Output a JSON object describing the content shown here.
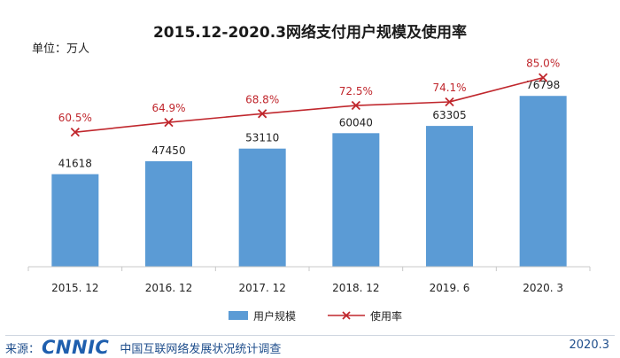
{
  "chart_data": {
    "type": "bar",
    "title": "2015.12-2020.3网络支付用户规模及使用率",
    "unit_label": "单位：万人",
    "categories": [
      "2015. 12",
      "2016. 12",
      "2017. 12",
      "2018. 12",
      "2019. 6",
      "2020. 3"
    ],
    "series": [
      {
        "name": "用户规模",
        "type": "bar",
        "values": [
          41618,
          47450,
          53110,
          60040,
          63305,
          76798
        ],
        "color": "#5b9bd5"
      },
      {
        "name": "使用率",
        "type": "line",
        "values": [
          60.5,
          64.9,
          68.8,
          72.5,
          74.1,
          85.0
        ],
        "labels": [
          "60.5%",
          "64.9%",
          "68.8%",
          "72.5%",
          "74.1%",
          "85.0%"
        ],
        "color": "#c0272d"
      }
    ],
    "bar_ylim": [
      0,
      100000
    ],
    "line_ylim": [
      0,
      100
    ],
    "legend_position": "bottom-center",
    "grid": false
  },
  "footer": {
    "source_label": "来源：",
    "logo_text": "CNNIC",
    "org_text": "中国互联网络发展状况统计调查",
    "date": "2020.3"
  }
}
